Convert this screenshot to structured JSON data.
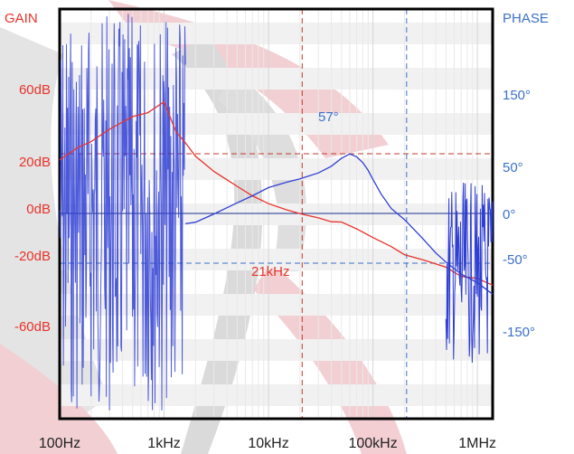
{
  "chart_data": {
    "type": "line",
    "title": "",
    "y_left_label": "GAIN",
    "y_right_label": "PHASE",
    "x_scale": "log",
    "x_range_hz": [
      100,
      1400000
    ],
    "x_ticks": [
      {
        "value": 100,
        "label": "100Hz"
      },
      {
        "value": 1000,
        "label": "1kHz"
      },
      {
        "value": 10000,
        "label": "10kHz"
      },
      {
        "value": 100000,
        "label": "100kHz"
      },
      {
        "value": 1000000,
        "label": "1MHz"
      }
    ],
    "gain_ticks": [
      {
        "value": 60,
        "label": "60dB"
      },
      {
        "value": 20,
        "label": "20dB"
      },
      {
        "value": 0,
        "label": "0dB"
      },
      {
        "value": -20,
        "label": "-20dB"
      },
      {
        "value": -60,
        "label": "-60dB"
      }
    ],
    "phase_ticks": [
      {
        "value": 150,
        "label": "150°"
      },
      {
        "value": 50,
        "label": "50°"
      },
      {
        "value": 0,
        "label": "0°"
      },
      {
        "value": -50,
        "label": "-50°"
      },
      {
        "value": -150,
        "label": "-150°"
      }
    ],
    "annotations": {
      "crossover_label": "21kHz",
      "crossover_hz": 21000,
      "phase_margin_label": "57°",
      "phase_margin_deg": 57,
      "phase_marker_hz": 210000
    },
    "series": [
      {
        "color": "#e8332a",
        "axis": "left",
        "x": [
          100,
          150,
          200,
          300,
          500,
          700,
          1000,
          1300,
          1600,
          2000,
          3000,
          5000,
          7000,
          10000,
          15000,
          21000,
          30000,
          40000,
          50000,
          70000,
          100000,
          150000,
          200000,
          300000,
          500000,
          700000,
          1000000,
          1400000
        ],
        "y": [
          24,
          30,
          28,
          36,
          40,
          42,
          46,
          36,
          30,
          24,
          18,
          12,
          8,
          4,
          2,
          0,
          -2,
          -4,
          -4,
          -7,
          -10,
          -14,
          -17,
          -20,
          -23,
          -27,
          -28,
          -30
        ]
      },
      {
        "color": "#2f3ed3",
        "axis": "right",
        "x": [
          1600,
          2000,
          3000,
          5000,
          7000,
          10000,
          15000,
          20000,
          30000,
          40000,
          50000,
          60000,
          70000,
          80000,
          90000,
          100000,
          120000,
          150000,
          200000,
          300000,
          400000,
          500000,
          700000,
          1000000,
          1400000
        ],
        "y": [
          -10,
          -8,
          0,
          10,
          18,
          25,
          32,
          36,
          41,
          47,
          55,
          60,
          57,
          50,
          43,
          35,
          20,
          5,
          -6,
          -25,
          -40,
          -50,
          -62,
          -70,
          -80
        ]
      }
    ]
  }
}
